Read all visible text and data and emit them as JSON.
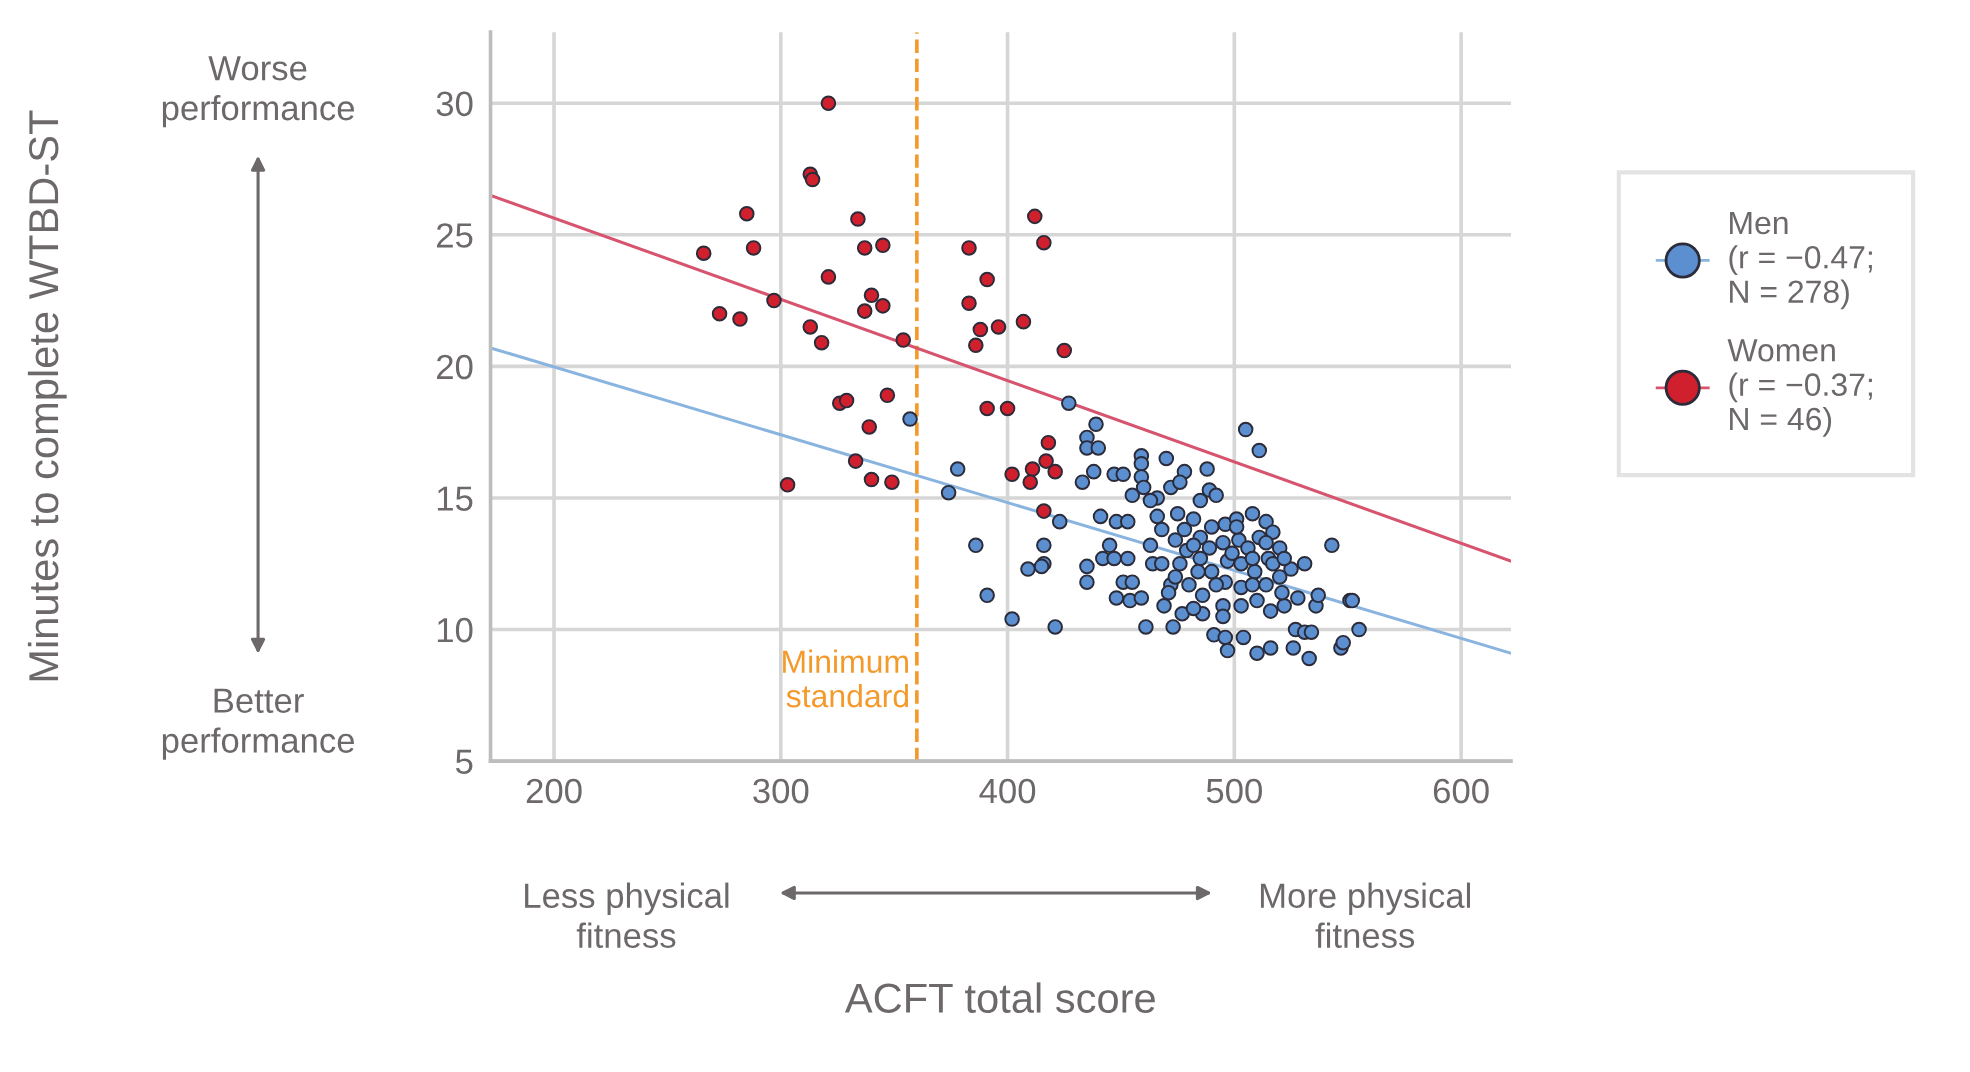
{
  "chart_data": {
    "type": "scatter",
    "xlabel": "ACFT total score",
    "xlim": [
      172,
      622
    ],
    "ylim": [
      5,
      32.7
    ],
    "xticks": [
      200,
      300,
      400,
      500,
      600
    ],
    "yticks": [
      5,
      10,
      15,
      20,
      25,
      30
    ],
    "grid": true,
    "legend": "right",
    "ref_lines": [
      {
        "axis": "x",
        "value": 360,
        "label": "Minimum\nstandard",
        "color": "#f39a2b",
        "line_style": "dashed"
      }
    ],
    "annotations": [
      "Worse\nperformance",
      "Better\nperformance",
      "Less physical\nfitness",
      "More physical\nfitness",
      "Minutes to complete WTBD-ST"
    ],
    "series": [
      {
        "marker": "circle",
        "name": "Men\n(r = −0.47;\nN = 278)",
        "color": "#5b8fcf",
        "x": [
          357,
          378,
          374,
          427,
          439,
          435,
          435,
          440,
          438,
          433,
          447,
          451,
          459,
          459,
          470,
          478,
          488,
          505,
          511,
          459,
          460,
          455,
          466,
          472,
          476,
          463,
          485,
          489,
          492,
          386,
          391,
          402,
          421,
          416,
          416,
          409,
          415,
          423,
          441,
          448,
          453,
          435,
          435,
          445,
          442,
          447,
          453,
          448,
          454,
          459,
          451,
          455,
          461,
          469,
          473,
          477,
          463,
          464,
          468,
          472,
          471,
          466,
          475,
          482,
          468,
          478,
          474,
          485,
          489,
          485,
          490,
          480,
          486,
          495,
          495,
          491,
          496,
          497,
          496,
          501,
          508,
          514,
          517,
          495,
          502,
          506,
          511,
          514,
          515,
          497,
          503,
          509,
          496,
          503,
          508,
          514,
          520,
          525,
          531,
          543,
          503,
          510,
          516,
          522,
          528,
          536,
          537,
          551,
          555,
          504,
          510,
          516,
          526,
          533,
          527,
          531,
          534,
          547,
          479,
          484,
          492,
          499,
          508,
          517,
          501,
          490,
          482,
          476,
          474,
          486,
          482,
          520,
          522,
          521,
          552,
          548
        ],
        "values": [
          18.0,
          16.1,
          15.2,
          18.6,
          17.8,
          17.3,
          16.9,
          16.9,
          16.0,
          15.6,
          15.9,
          15.9,
          16.6,
          16.3,
          16.5,
          16.0,
          16.1,
          17.6,
          16.8,
          15.8,
          15.4,
          15.1,
          15.0,
          15.4,
          15.6,
          14.9,
          14.9,
          15.3,
          15.1,
          13.2,
          11.3,
          10.4,
          10.1,
          13.2,
          12.5,
          12.3,
          12.4,
          14.1,
          14.3,
          14.1,
          14.1,
          12.4,
          11.8,
          13.2,
          12.7,
          12.7,
          12.7,
          11.2,
          11.1,
          11.2,
          11.8,
          11.8,
          10.1,
          10.9,
          10.1,
          10.6,
          13.2,
          12.5,
          12.5,
          11.7,
          11.4,
          14.3,
          14.4,
          14.2,
          13.8,
          13.8,
          13.4,
          13.5,
          13.1,
          12.7,
          12.2,
          11.7,
          11.3,
          10.9,
          10.5,
          9.8,
          9.7,
          9.2,
          14.0,
          14.2,
          14.4,
          14.1,
          13.7,
          13.3,
          13.4,
          13.1,
          13.5,
          13.3,
          12.7,
          12.6,
          12.5,
          12.2,
          11.8,
          11.6,
          11.7,
          11.7,
          12.0,
          12.3,
          12.5,
          13.2,
          10.9,
          11.1,
          10.7,
          10.9,
          11.2,
          10.9,
          11.3,
          11.1,
          10.0,
          9.7,
          9.1,
          9.3,
          9.3,
          8.9,
          10.0,
          9.9,
          9.9,
          9.3,
          13.0,
          12.2,
          11.7,
          12.9,
          12.7,
          12.5,
          13.9,
          13.9,
          13.2,
          12.5,
          12.0,
          10.6,
          10.8,
          13.1,
          12.7,
          11.4,
          11.1,
          9.5
        ]
      },
      {
        "marker": "circle",
        "name": "Women\n(r = −0.37;\nN = 46)",
        "color": "#d0202e",
        "x": [
          321,
          313,
          314,
          285,
          334,
          266,
          288,
          337,
          345,
          383,
          321,
          391,
          340,
          337,
          345,
          383,
          273,
          282,
          297,
          313,
          318,
          354,
          388,
          396,
          386,
          347,
          326,
          329,
          339,
          391,
          400,
          333,
          340,
          349,
          303,
          402,
          418,
          417,
          411,
          410,
          421,
          416,
          412,
          416,
          407,
          425
        ],
        "values": [
          30.0,
          27.3,
          27.1,
          25.8,
          25.6,
          24.3,
          24.5,
          24.5,
          24.6,
          24.5,
          23.4,
          23.3,
          22.7,
          22.1,
          22.3,
          22.4,
          22.0,
          21.8,
          22.5,
          21.5,
          20.9,
          21.0,
          21.4,
          21.5,
          20.8,
          18.9,
          18.6,
          18.7,
          17.7,
          18.4,
          18.4,
          16.4,
          15.7,
          15.6,
          15.5,
          15.9,
          17.1,
          16.4,
          16.1,
          15.6,
          16.0,
          14.5,
          25.7,
          24.7,
          21.7,
          20.6
        ]
      },
      {
        "type": "line",
        "marker": "none",
        "color": "#8ab4e0",
        "x": [
          172,
          622
        ],
        "values": [
          20.7,
          9.1
        ]
      },
      {
        "type": "line",
        "marker": "none",
        "color": "#d6546e",
        "x": [
          172,
          622
        ],
        "values": [
          26.5,
          12.6
        ]
      }
    ]
  }
}
